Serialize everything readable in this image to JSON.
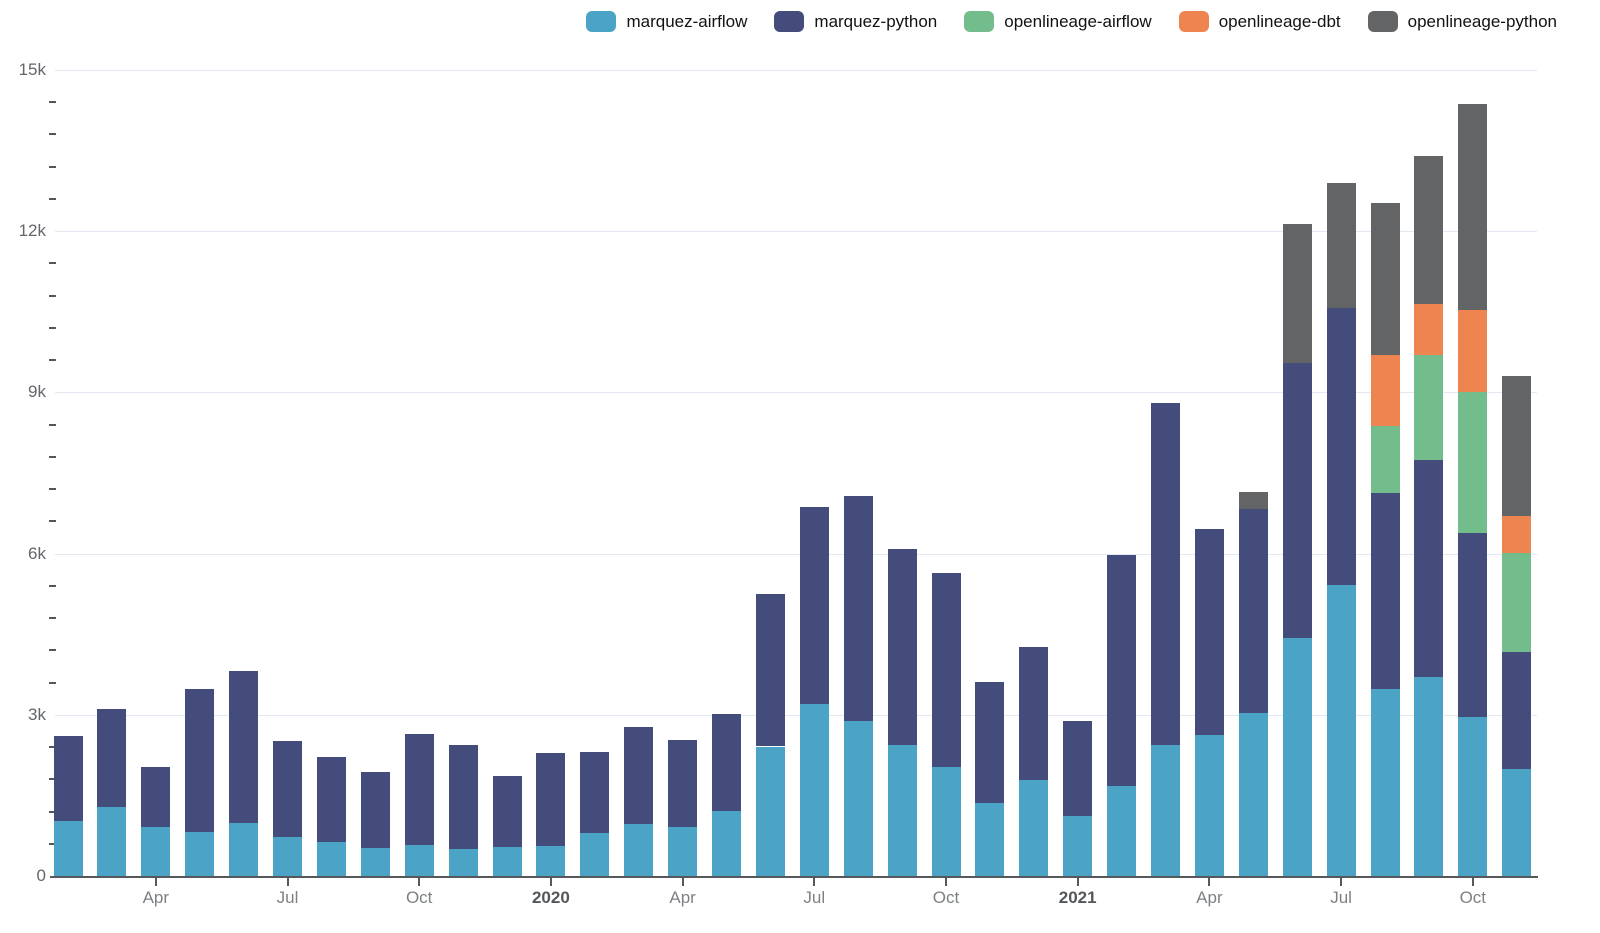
{
  "legend": {
    "items": [
      {
        "label": "marquez-airflow",
        "color": "#4ba4c6"
      },
      {
        "label": "marquez-python",
        "color": "#444c7c"
      },
      {
        "label": "openlineage-airflow",
        "color": "#73bd8c"
      },
      {
        "label": "openlineage-dbt",
        "color": "#ee8450"
      },
      {
        "label": "openlineage-python",
        "color": "#626466"
      }
    ]
  },
  "y_axis": {
    "tick_labels": [
      "0",
      "3k",
      "6k",
      "9k",
      "12k",
      "15k"
    ],
    "tick_values": [
      0,
      3000,
      6000,
      9000,
      12000,
      15000
    ],
    "minor_step": 600,
    "max": 15000
  },
  "x_axis": {
    "ticks": [
      {
        "label": "Apr",
        "month_index": 2,
        "bold": false
      },
      {
        "label": "Jul",
        "month_index": 5,
        "bold": false
      },
      {
        "label": "Oct",
        "month_index": 8,
        "bold": false
      },
      {
        "label": "2020",
        "month_index": 11,
        "bold": true
      },
      {
        "label": "Apr",
        "month_index": 14,
        "bold": false
      },
      {
        "label": "Jul",
        "month_index": 17,
        "bold": false
      },
      {
        "label": "Oct",
        "month_index": 20,
        "bold": false
      },
      {
        "label": "2021",
        "month_index": 23,
        "bold": true
      },
      {
        "label": "Apr",
        "month_index": 26,
        "bold": false
      },
      {
        "label": "Jul",
        "month_index": 29,
        "bold": false
      },
      {
        "label": "Oct",
        "month_index": 32,
        "bold": false
      }
    ]
  },
  "chart_data": {
    "type": "bar",
    "stacked": true,
    "legend_position": "top",
    "grid": "horizontal-major",
    "title": "",
    "xlabel": "",
    "ylabel": "",
    "ylim": [
      0,
      15000
    ],
    "categories": [
      "Feb 2019",
      "Mar 2019",
      "Apr 2019",
      "May 2019",
      "Jun 2019",
      "Jul 2019",
      "Aug 2019",
      "Sep 2019",
      "Oct 2019",
      "Nov 2019",
      "Dec 2019",
      "Jan 2020",
      "Feb 2020",
      "Mar 2020",
      "Apr 2020",
      "May 2020",
      "Jun 2020",
      "Jul 2020",
      "Aug 2020",
      "Sep 2020",
      "Oct 2020",
      "Nov 2020",
      "Dec 2020",
      "Jan 2021",
      "Feb 2021",
      "Mar 2021",
      "Apr 2021",
      "May 2021",
      "Jun 2021",
      "Jul 2021",
      "Aug 2021",
      "Sep 2021",
      "Oct 2021",
      "Nov 2021"
    ],
    "series": [
      {
        "name": "marquez-airflow",
        "color": "#4ba4c6",
        "values": [
          1020,
          1290,
          910,
          820,
          990,
          720,
          640,
          520,
          580,
          500,
          540,
          550,
          800,
          970,
          920,
          1210,
          2410,
          3210,
          2890,
          2430,
          2020,
          1360,
          1790,
          1120,
          1670,
          2440,
          2630,
          3030,
          4430,
          5420,
          3480,
          3710,
          2950,
          2000
        ]
      },
      {
        "name": "marquez-python",
        "color": "#444c7c",
        "values": [
          1590,
          1820,
          1120,
          2660,
          2820,
          1790,
          1580,
          1410,
          2070,
          1940,
          1320,
          1730,
          1500,
          1810,
          1620,
          1800,
          2830,
          3660,
          4190,
          3660,
          3610,
          2250,
          2480,
          1760,
          4300,
          6360,
          3820,
          3800,
          5110,
          5150,
          3650,
          4030,
          3440,
          2170
        ]
      },
      {
        "name": "openlineage-airflow",
        "color": "#73bd8c",
        "values": [
          0,
          0,
          0,
          0,
          0,
          0,
          0,
          0,
          0,
          0,
          0,
          0,
          0,
          0,
          0,
          0,
          0,
          0,
          0,
          0,
          0,
          0,
          0,
          0,
          0,
          0,
          0,
          0,
          0,
          0,
          1240,
          1960,
          2620,
          1850
        ]
      },
      {
        "name": "openlineage-dbt",
        "color": "#ee8450",
        "values": [
          0,
          0,
          0,
          0,
          0,
          0,
          0,
          0,
          0,
          0,
          0,
          0,
          0,
          0,
          0,
          0,
          0,
          0,
          0,
          0,
          0,
          0,
          0,
          0,
          0,
          0,
          0,
          0,
          0,
          0,
          1320,
          950,
          1530,
          680
        ]
      },
      {
        "name": "openlineage-python",
        "color": "#626466",
        "values": [
          0,
          0,
          0,
          0,
          0,
          0,
          0,
          0,
          0,
          0,
          0,
          0,
          0,
          0,
          0,
          0,
          0,
          0,
          0,
          0,
          0,
          0,
          0,
          0,
          0,
          0,
          0,
          320,
          2590,
          2330,
          2840,
          2750,
          3830,
          2610
        ]
      }
    ]
  }
}
